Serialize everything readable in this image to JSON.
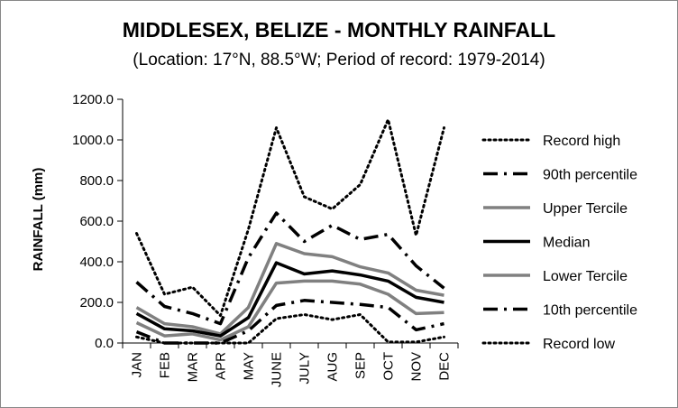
{
  "chart_data": {
    "type": "line",
    "title": "MIDDLESEX, BELIZE - MONTHLY RAINFALL",
    "subtitle": "(Location: 17°N, 88.5°W; Period of record: 1979-2014)",
    "ylabel": "RAINFALL (mm)",
    "xlabel": "",
    "ylim": [
      0,
      1200
    ],
    "yticks": [
      "0.0",
      "200.0",
      "400.0",
      "600.0",
      "800.0",
      "1000.0",
      "1200.0"
    ],
    "grid": false,
    "legend_position": "right",
    "categories": [
      "JAN",
      "FEB",
      "MAR",
      "APR",
      "MAY",
      "JUNE",
      "JULY",
      "AUG",
      "SEP",
      "OCT",
      "NOV",
      "DEC"
    ],
    "series": [
      {
        "name": "Record high",
        "style": "dotted",
        "color": "#000000",
        "values": [
          540,
          240,
          275,
          135,
          560,
          1060,
          720,
          660,
          780,
          1100,
          530,
          1060
        ]
      },
      {
        "name": "90th percentile",
        "style": "dashdot",
        "color": "#000000",
        "values": [
          300,
          180,
          145,
          95,
          420,
          640,
          500,
          580,
          510,
          535,
          380,
          270
        ]
      },
      {
        "name": "Upper Tercile",
        "style": "solid-gray",
        "color": "#808080",
        "values": [
          175,
          95,
          80,
          45,
          175,
          490,
          440,
          425,
          375,
          345,
          260,
          235
        ]
      },
      {
        "name": "Median",
        "style": "solid-black",
        "color": "#000000",
        "values": [
          145,
          70,
          60,
          35,
          125,
          395,
          340,
          355,
          335,
          305,
          225,
          200
        ]
      },
      {
        "name": "Lower Tercile",
        "style": "solid-gray",
        "color": "#808080",
        "values": [
          100,
          35,
          45,
          15,
          80,
          295,
          305,
          305,
          290,
          240,
          145,
          150
        ]
      },
      {
        "name": "10th percentile",
        "style": "dashdot",
        "color": "#000000",
        "values": [
          55,
          0,
          0,
          0,
          60,
          185,
          210,
          200,
          190,
          175,
          65,
          95
        ]
      },
      {
        "name": "Record low",
        "style": "dotted",
        "color": "#000000",
        "values": [
          30,
          0,
          0,
          0,
          0,
          120,
          140,
          115,
          140,
          5,
          5,
          30
        ]
      }
    ]
  }
}
